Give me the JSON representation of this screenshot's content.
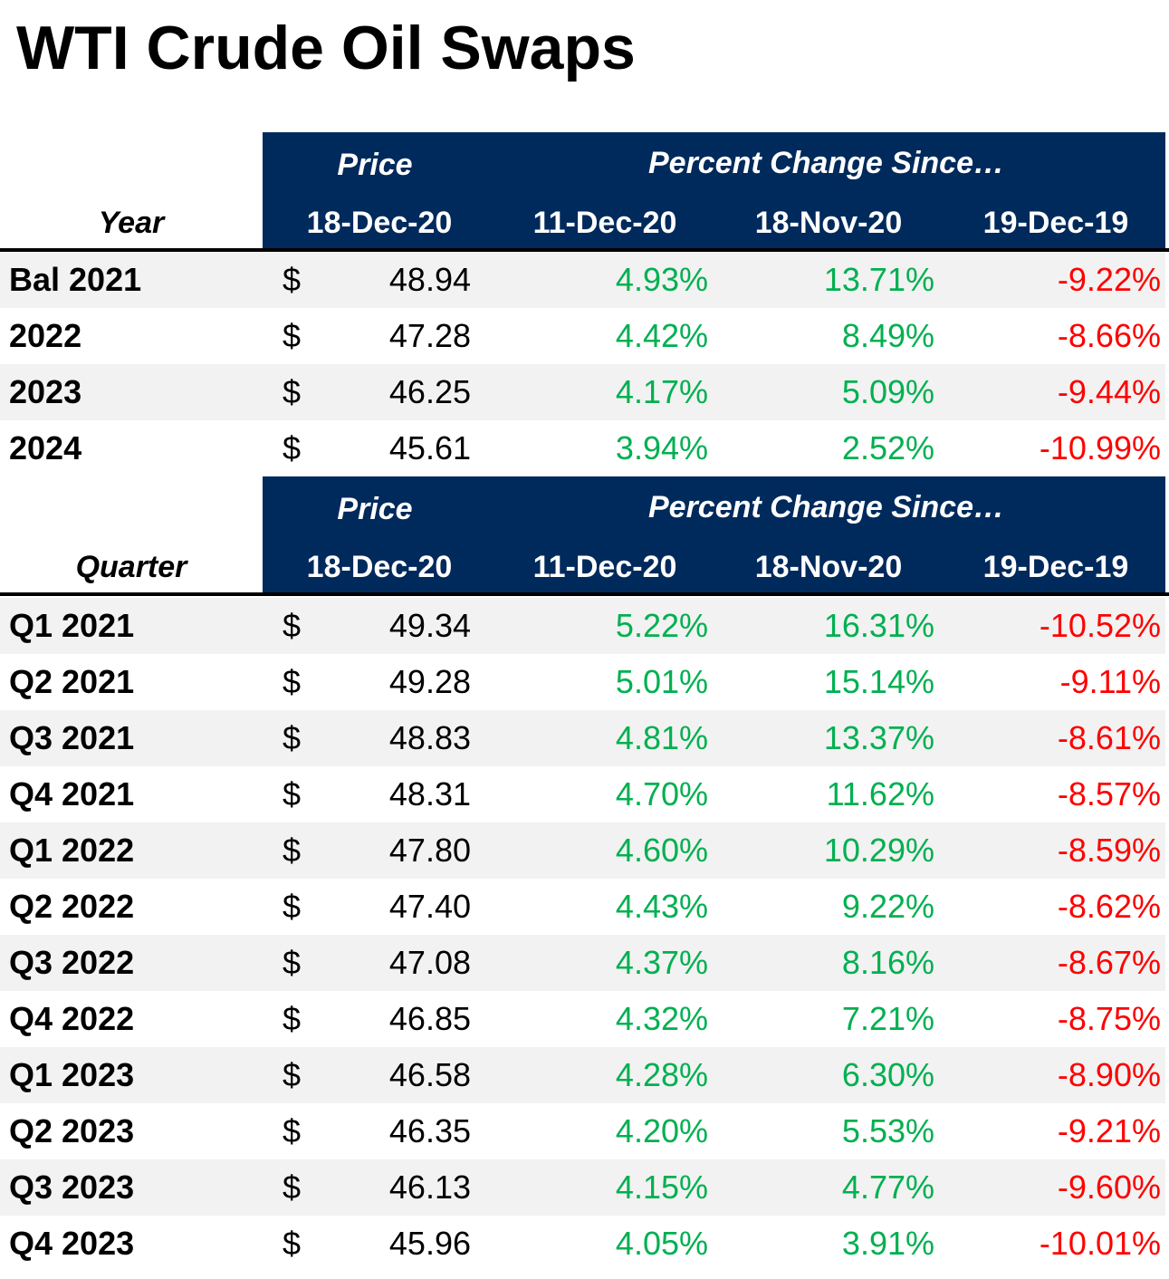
{
  "title": "WTI Crude Oil Swaps",
  "header": {
    "price_label": "Price",
    "pct_label": "Percent Change Since…",
    "date_price": "18-Dec-20",
    "date_1": "11-Dec-20",
    "date_2": "18-Nov-20",
    "date_3": "19-Dec-19"
  },
  "year_section": {
    "row_label": "Year",
    "rows": [
      {
        "label": "Bal 2021",
        "price": "48.94",
        "p1": "4.93%",
        "p2": "13.71%",
        "p3": "-9.22%"
      },
      {
        "label": "2022",
        "price": "47.28",
        "p1": "4.42%",
        "p2": "8.49%",
        "p3": "-8.66%"
      },
      {
        "label": "2023",
        "price": "46.25",
        "p1": "4.17%",
        "p2": "5.09%",
        "p3": "-9.44%"
      },
      {
        "label": "2024",
        "price": "45.61",
        "p1": "3.94%",
        "p2": "2.52%",
        "p3": "-10.99%"
      }
    ]
  },
  "quarter_section": {
    "row_label": "Quarter",
    "rows": [
      {
        "label": "Q1 2021",
        "price": "49.34",
        "p1": "5.22%",
        "p2": "16.31%",
        "p3": "-10.52%"
      },
      {
        "label": "Q2 2021",
        "price": "49.28",
        "p1": "5.01%",
        "p2": "15.14%",
        "p3": "-9.11%"
      },
      {
        "label": "Q3 2021",
        "price": "48.83",
        "p1": "4.81%",
        "p2": "13.37%",
        "p3": "-8.61%"
      },
      {
        "label": "Q4 2021",
        "price": "48.31",
        "p1": "4.70%",
        "p2": "11.62%",
        "p3": "-8.57%"
      },
      {
        "label": "Q1 2022",
        "price": "47.80",
        "p1": "4.60%",
        "p2": "10.29%",
        "p3": "-8.59%"
      },
      {
        "label": "Q2 2022",
        "price": "47.40",
        "p1": "4.43%",
        "p2": "9.22%",
        "p3": "-8.62%"
      },
      {
        "label": "Q3 2022",
        "price": "47.08",
        "p1": "4.37%",
        "p2": "8.16%",
        "p3": "-8.67%"
      },
      {
        "label": "Q4 2022",
        "price": "46.85",
        "p1": "4.32%",
        "p2": "7.21%",
        "p3": "-8.75%"
      },
      {
        "label": "Q1 2023",
        "price": "46.58",
        "p1": "4.28%",
        "p2": "6.30%",
        "p3": "-8.90%"
      },
      {
        "label": "Q2 2023",
        "price": "46.35",
        "p1": "4.20%",
        "p2": "5.53%",
        "p3": "-9.21%"
      },
      {
        "label": "Q3 2023",
        "price": "46.13",
        "p1": "4.15%",
        "p2": "4.77%",
        "p3": "-9.60%"
      },
      {
        "label": "Q4 2023",
        "price": "45.96",
        "p1": "4.05%",
        "p2": "3.91%",
        "p3": "-10.01%"
      }
    ]
  },
  "currency_symbol": "$",
  "colors": {
    "header_bg": "#002a5c",
    "positive": "#00b050",
    "negative": "#ff0000",
    "row_shade": "#f2f2f2"
  }
}
